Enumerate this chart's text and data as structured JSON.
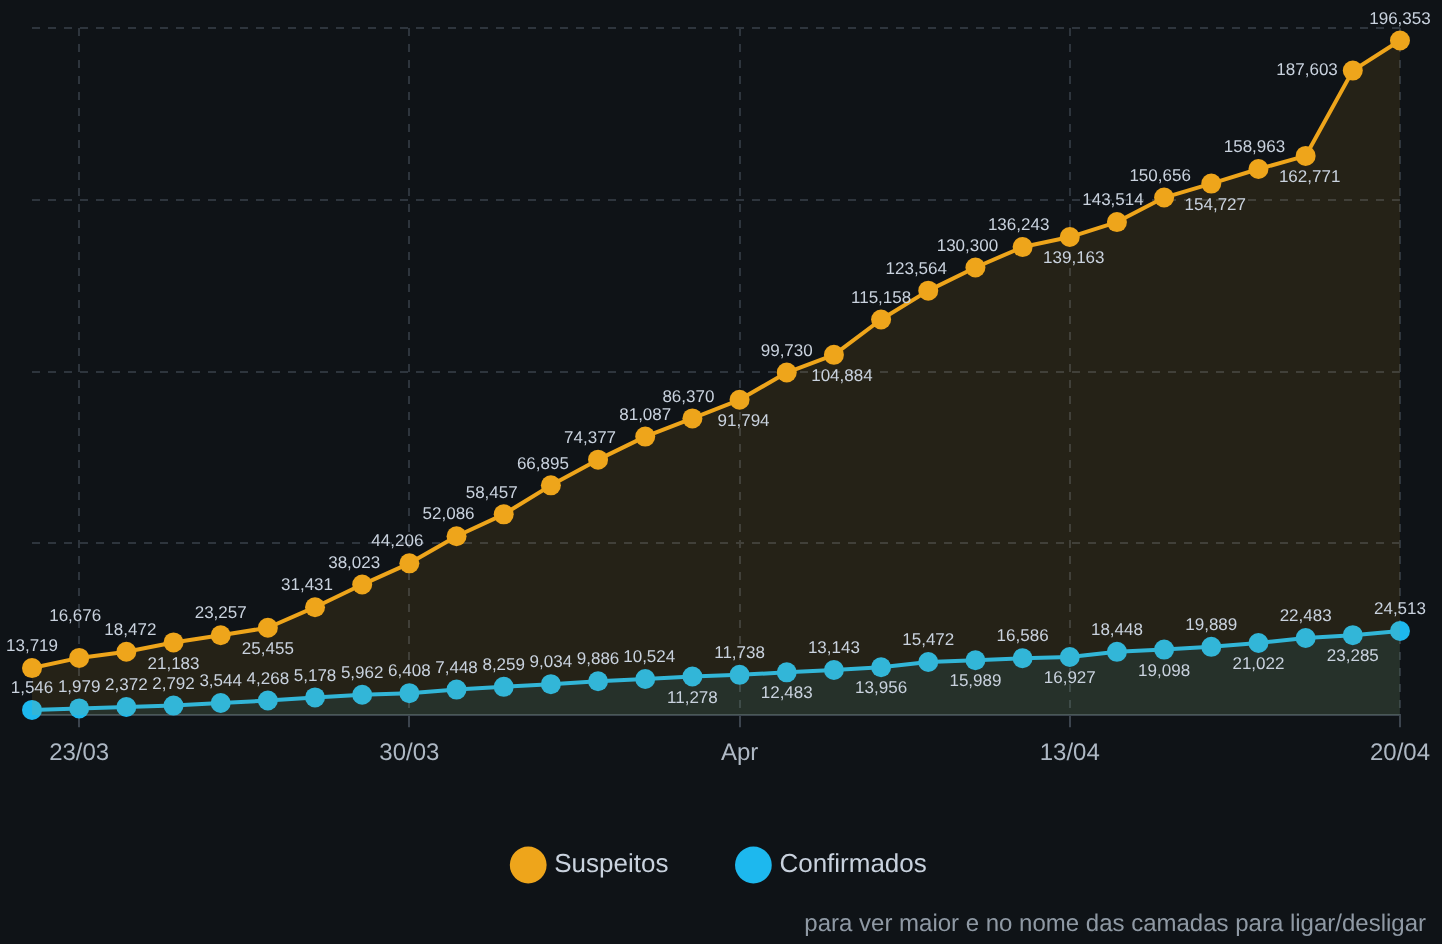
{
  "chart_data": {
    "type": "area",
    "x": [
      "--03-22",
      "--03-23",
      "--03-24",
      "--03-25",
      "--03-26",
      "--03-27",
      "--03-28",
      "--03-29",
      "--03-30",
      "--03-31",
      "--04-01",
      "--04-02",
      "--04-03",
      "--04-04",
      "--04-05",
      "--04-06",
      "--04-07",
      "--04-08",
      "--04-09",
      "--04-10",
      "--04-11",
      "--04-12",
      "--04-13",
      "--04-14",
      "--04-15",
      "--04-16",
      "--04-17",
      "--04-18",
      "--04-19",
      "--04-20"
    ],
    "xlim": [
      "--03-22",
      "--04-20"
    ],
    "xticks": [
      {
        "value": "--03-23",
        "label": "23/03"
      },
      {
        "value": "--03-30",
        "label": "30/03"
      },
      {
        "value": "--04-06",
        "label": "Apr"
      },
      {
        "value": "--04-13",
        "label": "13/04"
      },
      {
        "value": "--04-20",
        "label": "20/04"
      }
    ],
    "ylim": [
      0,
      200000
    ],
    "yticks": [
      {
        "value": 0,
        "label": null
      },
      {
        "value": 50000,
        "label": null
      },
      {
        "value": 100000,
        "label": null
      },
      {
        "value": 150000,
        "label": null
      },
      {
        "value": 200000,
        "label": null
      }
    ],
    "tick_labels": "x",
    "grid": true,
    "legend": "bottom",
    "marker": "circle",
    "line_style": "solid",
    "series": [
      {
        "name": "Suspeitos",
        "color": "#eea51b",
        "values": [
          13719,
          16676,
          18472,
          21183,
          23257,
          25455,
          31431,
          38023,
          44206,
          52086,
          58457,
          66895,
          74377,
          81087,
          86370,
          91794,
          99730,
          104884,
          115158,
          123564,
          130300,
          136243,
          139163,
          143514,
          150656,
          154727,
          158963,
          162771,
          187603,
          196353
        ],
        "value_labels": [
          "13,719",
          "16,676",
          "18,472",
          "21,183",
          "23,257",
          "25,455",
          "31,431",
          "38,023",
          "44,206",
          "52,086",
          "58,457",
          "66,895",
          "74,377",
          "81,087",
          "86,370",
          "91,794",
          "99,730",
          "104,884",
          "115,158",
          "123,564",
          "130,300",
          "136,243",
          "139,163",
          "143,514",
          "150,656",
          "154,727",
          "158,963",
          "162,771",
          "187,603",
          "196,353"
        ]
      },
      {
        "name": "Confirmados",
        "color": "#1db8ee",
        "values": [
          1546,
          1979,
          2372,
          2792,
          3544,
          4268,
          5178,
          5962,
          6408,
          7448,
          8259,
          9034,
          9886,
          10524,
          11278,
          11738,
          12483,
          13143,
          13956,
          15472,
          15989,
          16586,
          16927,
          18448,
          19098,
          19889,
          21022,
          22483,
          23285,
          24513
        ],
        "value_labels": [
          "1,546",
          "1,979",
          "2,372",
          "2,792",
          "3,544",
          "4,268",
          "5,178",
          "5,962",
          "6,408",
          "7,448",
          "8,259",
          "9,034",
          "9,886",
          "10,524",
          "11,278",
          "11,738",
          "12,483",
          "13,143",
          "13,956",
          "15,472",
          "15,989",
          "16,586",
          "16,927",
          "18,448",
          "19,098",
          "19,889",
          "21,022",
          "22,483",
          "23,285",
          "24,513"
        ]
      }
    ],
    "annotations": [
      "para ver maior e no nome das camadas para ligar/desligar"
    ]
  }
}
